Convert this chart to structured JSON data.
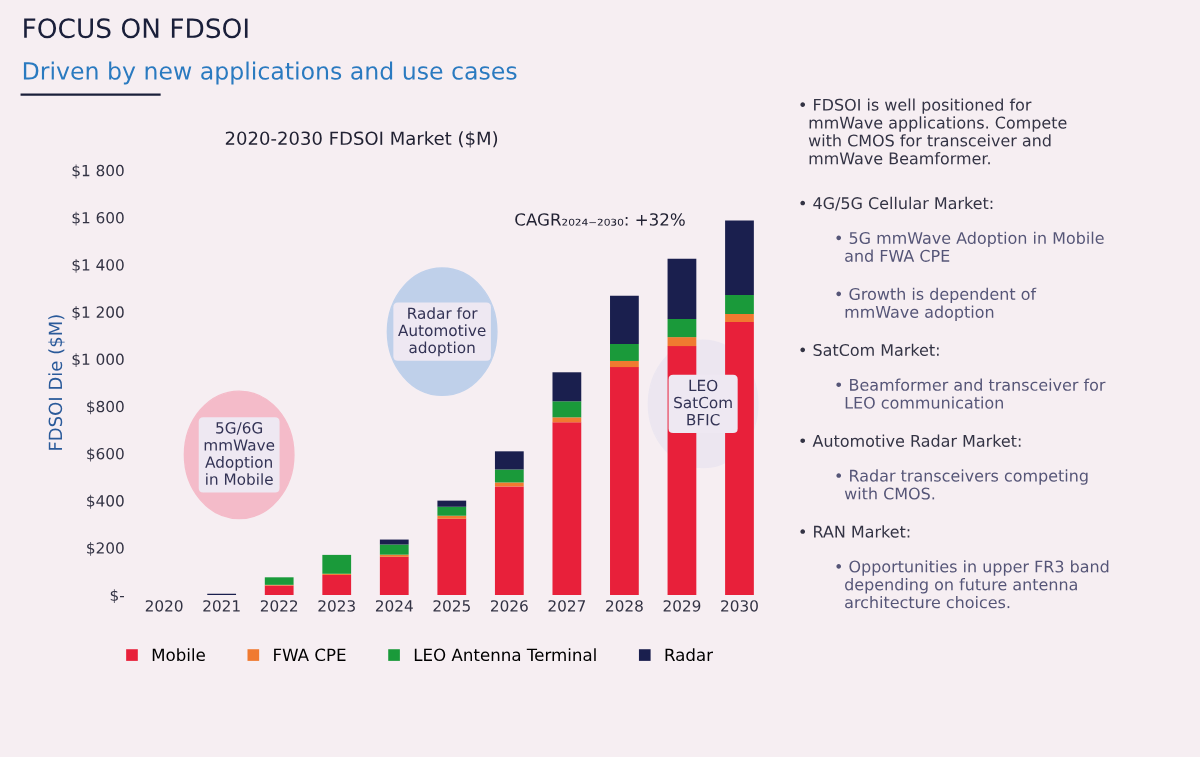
{
  "chart_data": {
    "type": "bar",
    "stacked": true,
    "title": "FOCUS ON FDSOI",
    "subtitle": "Driven by new applications and use cases",
    "ylabel": "FDSOI Die ($M)",
    "categories": [
      "2020",
      "2021",
      "2022",
      "2023",
      "2024",
      "2025",
      "2026",
      "2027",
      "2028",
      "2029",
      "2030"
    ],
    "series": [
      {
        "name": "Mobile",
        "color": "#e8203a",
        "values": [
          0,
          0,
          40,
          85,
          162,
          323,
          460,
          732,
          966,
          1055,
          1157
        ]
      },
      {
        "name": "FWA CPE",
        "color": "#f07a30",
        "values": [
          0,
          0,
          3,
          5,
          9,
          13,
          17,
          21,
          26,
          38,
          34
        ]
      },
      {
        "name": "LEO Antenna Terminal",
        "color": "#1a9a3a",
        "values": [
          0,
          0,
          32,
          80,
          43,
          38,
          55,
          68,
          72,
          77,
          81
        ]
      },
      {
        "name": "Radar",
        "color": "#1a1f4e",
        "values": [
          0,
          5,
          0,
          0,
          21,
          26,
          77,
          123,
          204,
          255,
          315
        ]
      }
    ],
    "ylim": [
      0,
      1800
    ],
    "yticks": [
      {
        "value": 0,
        "label": "$-"
      },
      {
        "value": 200,
        "label": "$200"
      },
      {
        "value": 400,
        "label": "$400"
      },
      {
        "value": 600,
        "label": "$600"
      },
      {
        "value": 800,
        "label": "$800"
      },
      {
        "value": 1000,
        "label": "$1 000"
      },
      {
        "value": 1200,
        "label": "$1 200"
      },
      {
        "value": 1400,
        "label": "$1 400"
      },
      {
        "value": 1600,
        "label": "$1 600"
      },
      {
        "value": 1800,
        "label": "$1 800"
      }
    ],
    "grid": false,
    "legend": "bottom",
    "annotations": [
      "2020-2030 FDSOI Market ($M)",
      "CAGR₂₀₂₄₋₂₀₃₀: +32%",
      "5G/6G\nmmWave\nAdoption\nin Mobile",
      "Radar for\nAutomotive\nadoption",
      "LEO\nSatCom\nBFIC",
      "• FDSOI is well positioned for\n  mmWave applications. Compete\n  with CMOS for transceiver and\n  mmWave Beamformer.",
      "• 4G/5G Cellular Market:",
      "• 5G mmWave Adoption in Mobile\n  and FWA CPE",
      "• Growth is dependent of\n  mmWave adoption",
      "• SatCom Market:",
      "• Beamformer and transceiver for\n  LEO communication",
      "• Automotive Radar Market:",
      "• Radar transceivers competing\n  with CMOS.",
      "• RAN Market:",
      "• Opportunities in upper FR3 band\n  depending on future antenna\n  architecture choices."
    ]
  }
}
